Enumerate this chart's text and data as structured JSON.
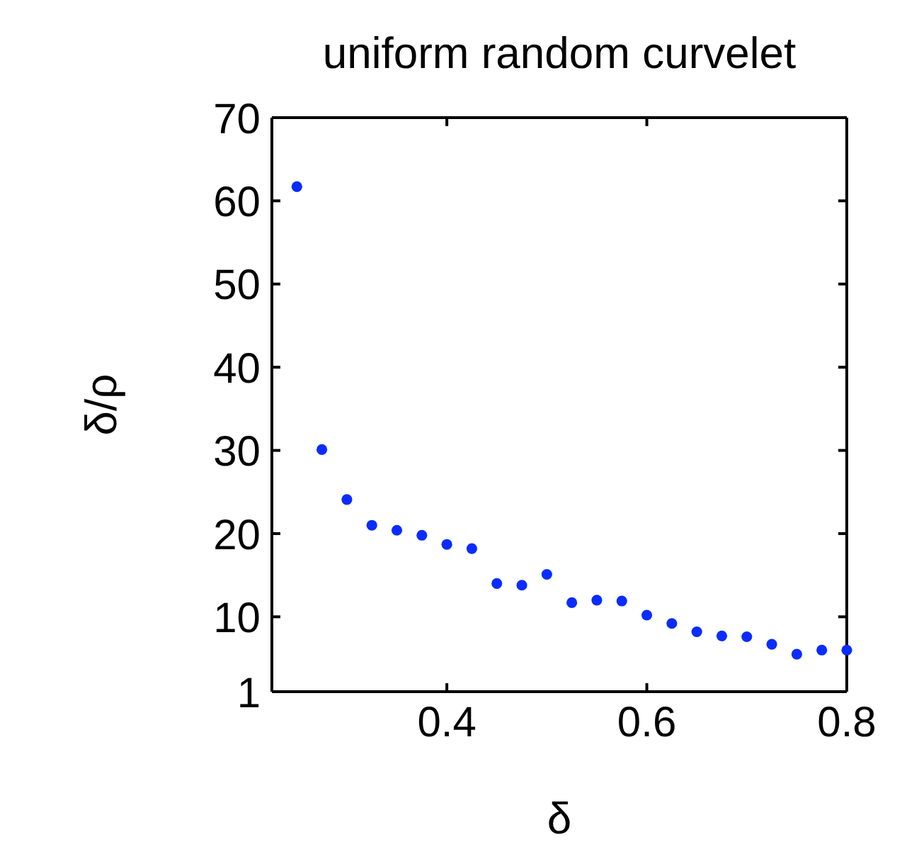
{
  "chart_data": {
    "type": "scatter",
    "title": "uniform random curvelet",
    "xlabel": "δ",
    "ylabel": "δ/ρ",
    "x": [
      0.25,
      0.275,
      0.3,
      0.325,
      0.35,
      0.375,
      0.4,
      0.425,
      0.45,
      0.475,
      0.5,
      0.525,
      0.55,
      0.575,
      0.6,
      0.625,
      0.65,
      0.675,
      0.7,
      0.725,
      0.75,
      0.775,
      0.8
    ],
    "series": [
      {
        "color": "#0a2cff",
        "values": [
          61.7,
          30.1,
          24.1,
          21.0,
          20.4,
          19.8,
          18.7,
          18.2,
          14.0,
          13.8,
          15.1,
          11.7,
          12.0,
          11.9,
          10.2,
          9.2,
          8.2,
          7.7,
          7.6,
          6.7,
          5.5,
          6.0,
          6.0
        ]
      }
    ],
    "xlim": [
      0.225,
      0.8
    ],
    "xticks": [
      0.4,
      0.6,
      0.8
    ],
    "ylim": [
      1,
      70
    ],
    "yticks": [
      1,
      10,
      20,
      30,
      40,
      50,
      60,
      70
    ],
    "marker": "circle",
    "grid": false
  }
}
